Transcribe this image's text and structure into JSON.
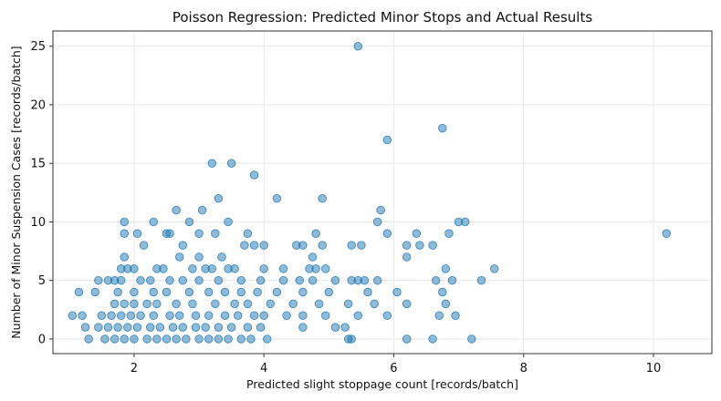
{
  "chart_data": {
    "type": "scatter",
    "title": "Poisson Regression: Predicted Minor Stops and Actual Results",
    "xlabel": "Predicted slight stoppage count [records/batch]",
    "ylabel": "Number of Minor Suspension Cases [records/batch]",
    "xlim": [
      0.75,
      10.9
    ],
    "ylim": [
      -1.25,
      26.3
    ],
    "xticks": [
      2,
      4,
      6,
      8,
      10
    ],
    "yticks": [
      0,
      5,
      10,
      15,
      20,
      25
    ],
    "grid": true,
    "color": "#1f77b4",
    "points": [
      [
        5.45,
        25
      ],
      [
        6.75,
        18
      ],
      [
        5.9,
        17
      ],
      [
        3.2,
        15
      ],
      [
        3.5,
        15
      ],
      [
        3.85,
        14
      ],
      [
        3.3,
        12
      ],
      [
        4.2,
        12
      ],
      [
        4.9,
        12
      ],
      [
        5.8,
        11
      ],
      [
        2.65,
        11
      ],
      [
        3.05,
        11
      ],
      [
        1.85,
        10
      ],
      [
        2.3,
        10
      ],
      [
        2.85,
        10
      ],
      [
        3.45,
        10
      ],
      [
        5.75,
        10
      ],
      [
        7.0,
        10
      ],
      [
        7.1,
        10
      ],
      [
        1.85,
        9
      ],
      [
        2.05,
        9
      ],
      [
        2.5,
        9
      ],
      [
        2.55,
        9
      ],
      [
        3.0,
        9
      ],
      [
        3.25,
        9
      ],
      [
        3.75,
        9
      ],
      [
        4.8,
        9
      ],
      [
        5.9,
        9
      ],
      [
        6.35,
        9
      ],
      [
        6.85,
        9
      ],
      [
        10.2,
        9
      ],
      [
        2.15,
        8
      ],
      [
        2.75,
        8
      ],
      [
        3.7,
        8
      ],
      [
        3.85,
        8
      ],
      [
        4.0,
        8
      ],
      [
        4.5,
        8
      ],
      [
        4.6,
        8
      ],
      [
        4.9,
        8
      ],
      [
        5.35,
        8
      ],
      [
        5.5,
        8
      ],
      [
        6.2,
        8
      ],
      [
        6.4,
        8
      ],
      [
        6.6,
        8
      ],
      [
        1.85,
        7
      ],
      [
        2.7,
        7
      ],
      [
        3.0,
        7
      ],
      [
        3.35,
        7
      ],
      [
        4.75,
        7
      ],
      [
        6.2,
        7
      ],
      [
        1.8,
        6
      ],
      [
        1.9,
        6
      ],
      [
        2.0,
        6
      ],
      [
        2.35,
        6
      ],
      [
        2.45,
        6
      ],
      [
        2.9,
        6
      ],
      [
        3.1,
        6
      ],
      [
        3.2,
        6
      ],
      [
        3.45,
        6
      ],
      [
        3.55,
        6
      ],
      [
        4.0,
        6
      ],
      [
        4.3,
        6
      ],
      [
        4.7,
        6
      ],
      [
        4.8,
        6
      ],
      [
        4.95,
        6
      ],
      [
        6.8,
        6
      ],
      [
        7.55,
        6
      ],
      [
        1.45,
        5
      ],
      [
        1.6,
        5
      ],
      [
        1.7,
        5
      ],
      [
        1.8,
        5
      ],
      [
        2.1,
        5
      ],
      [
        2.25,
        5
      ],
      [
        2.55,
        5
      ],
      [
        2.75,
        5
      ],
      [
        3.0,
        5
      ],
      [
        3.3,
        5
      ],
      [
        3.65,
        5
      ],
      [
        3.95,
        5
      ],
      [
        4.3,
        5
      ],
      [
        4.55,
        5
      ],
      [
        4.75,
        5
      ],
      [
        5.1,
        5
      ],
      [
        5.35,
        5
      ],
      [
        5.45,
        5
      ],
      [
        5.55,
        5
      ],
      [
        5.75,
        5
      ],
      [
        6.65,
        5
      ],
      [
        6.9,
        5
      ],
      [
        7.35,
        5
      ],
      [
        1.15,
        4
      ],
      [
        1.4,
        4
      ],
      [
        1.75,
        4
      ],
      [
        2.0,
        4
      ],
      [
        2.3,
        4
      ],
      [
        2.5,
        4
      ],
      [
        2.85,
        4
      ],
      [
        3.15,
        4
      ],
      [
        3.4,
        4
      ],
      [
        3.65,
        4
      ],
      [
        3.9,
        4
      ],
      [
        4.2,
        4
      ],
      [
        4.6,
        4
      ],
      [
        5.0,
        4
      ],
      [
        5.6,
        4
      ],
      [
        6.05,
        4
      ],
      [
        6.75,
        4
      ],
      [
        1.7,
        3
      ],
      [
        1.85,
        3
      ],
      [
        2.0,
        3
      ],
      [
        2.2,
        3
      ],
      [
        2.35,
        3
      ],
      [
        2.65,
        3
      ],
      [
        2.9,
        3
      ],
      [
        3.25,
        3
      ],
      [
        3.55,
        3
      ],
      [
        3.75,
        3
      ],
      [
        4.1,
        3
      ],
      [
        4.45,
        3
      ],
      [
        4.85,
        3
      ],
      [
        5.3,
        3
      ],
      [
        5.7,
        3
      ],
      [
        6.2,
        3
      ],
      [
        6.8,
        3
      ],
      [
        1.05,
        2
      ],
      [
        1.2,
        2
      ],
      [
        1.5,
        2
      ],
      [
        1.65,
        2
      ],
      [
        1.8,
        2
      ],
      [
        1.95,
        2
      ],
      [
        2.1,
        2
      ],
      [
        2.3,
        2
      ],
      [
        2.55,
        2
      ],
      [
        2.7,
        2
      ],
      [
        2.95,
        2
      ],
      [
        3.15,
        2
      ],
      [
        3.4,
        2
      ],
      [
        3.6,
        2
      ],
      [
        3.85,
        2
      ],
      [
        4.0,
        2
      ],
      [
        4.35,
        2
      ],
      [
        4.6,
        2
      ],
      [
        4.95,
        2
      ],
      [
        5.45,
        2
      ],
      [
        5.9,
        2
      ],
      [
        6.7,
        2
      ],
      [
        6.95,
        2
      ],
      [
        1.25,
        1
      ],
      [
        1.45,
        1
      ],
      [
        1.6,
        1
      ],
      [
        1.75,
        1
      ],
      [
        1.9,
        1
      ],
      [
        2.05,
        1
      ],
      [
        2.25,
        1
      ],
      [
        2.4,
        1
      ],
      [
        2.6,
        1
      ],
      [
        2.75,
        1
      ],
      [
        2.95,
        1
      ],
      [
        3.1,
        1
      ],
      [
        3.3,
        1
      ],
      [
        3.5,
        1
      ],
      [
        3.75,
        1
      ],
      [
        3.95,
        1
      ],
      [
        4.6,
        1
      ],
      [
        5.1,
        1
      ],
      [
        5.25,
        1
      ],
      [
        1.3,
        0
      ],
      [
        1.55,
        0
      ],
      [
        1.7,
        0
      ],
      [
        1.85,
        0
      ],
      [
        2.0,
        0
      ],
      [
        2.2,
        0
      ],
      [
        2.35,
        0
      ],
      [
        2.5,
        0
      ],
      [
        2.65,
        0
      ],
      [
        2.8,
        0
      ],
      [
        3.0,
        0
      ],
      [
        3.15,
        0
      ],
      [
        3.3,
        0
      ],
      [
        3.45,
        0
      ],
      [
        3.65,
        0
      ],
      [
        3.8,
        0
      ],
      [
        4.05,
        0
      ],
      [
        5.3,
        0
      ],
      [
        5.35,
        0
      ],
      [
        6.2,
        0
      ],
      [
        6.6,
        0
      ],
      [
        7.2,
        0
      ]
    ]
  }
}
